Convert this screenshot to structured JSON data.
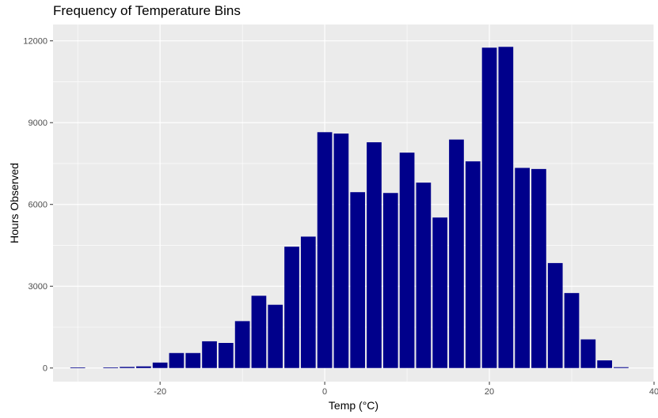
{
  "chart_data": {
    "type": "bar",
    "title": "Frequency of Temperature Bins",
    "xlabel": "Temp (°C)",
    "ylabel": "Hours Observed",
    "xlim": [
      -33,
      40
    ],
    "ylim": [
      -500,
      12600
    ],
    "x_ticks": [
      -20,
      0,
      20,
      40
    ],
    "x_tick_labels": [
      "-20",
      "0",
      "20",
      "40"
    ],
    "y_ticks": [
      0,
      3000,
      6000,
      9000,
      12000
    ],
    "y_tick_labels": [
      "0",
      "3000",
      "6000",
      "9000",
      "12000"
    ],
    "bin_width": 2,
    "x": [
      -30,
      -26,
      -24,
      -22,
      -20,
      -18,
      -16,
      -14,
      -12,
      -10,
      -8,
      -6,
      -4,
      -2,
      0,
      2,
      4,
      6,
      8,
      10,
      12,
      14,
      16,
      18,
      20,
      22,
      24,
      26,
      28,
      30,
      32,
      34,
      36
    ],
    "values": [
      20,
      20,
      40,
      60,
      200,
      550,
      550,
      980,
      920,
      1720,
      2650,
      2320,
      4450,
      4820,
      8650,
      8600,
      6450,
      8280,
      6420,
      7900,
      6800,
      5520,
      8380,
      7580,
      11750,
      11780,
      7340,
      7300,
      3850,
      2750,
      1050,
      280,
      30
    ],
    "colors": {
      "bar": "#00008B",
      "panel": "#EBEBEB",
      "grid_major": "#FFFFFF"
    },
    "grid": true,
    "legend": "none"
  }
}
